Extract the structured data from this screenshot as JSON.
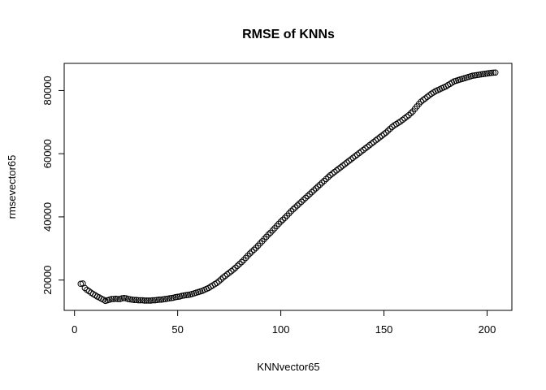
{
  "chart_data": {
    "type": "scatter",
    "title": "RMSE of KNNs",
    "xlabel": "KNNvector65",
    "ylabel": "rmsevector65",
    "color": "#000000",
    "grid": false,
    "xlim": [
      -5,
      212
    ],
    "ylim": [
      10400,
      88600
    ],
    "xticks": [
      0,
      50,
      100,
      150,
      200
    ],
    "yticks": [
      20000,
      40000,
      60000,
      80000
    ],
    "x": [
      3,
      4,
      5,
      6,
      7,
      8,
      9,
      10,
      11,
      12,
      13,
      14,
      15,
      16,
      17,
      18,
      19,
      20,
      21,
      22,
      23,
      24,
      25,
      26,
      27,
      28,
      29,
      30,
      31,
      32,
      33,
      34,
      35,
      36,
      37,
      38,
      39,
      40,
      41,
      42,
      43,
      44,
      45,
      46,
      47,
      48,
      49,
      50,
      51,
      52,
      53,
      54,
      55,
      56,
      57,
      58,
      59,
      60,
      61,
      62,
      63,
      64,
      65,
      66,
      67,
      68,
      69,
      70,
      71,
      72,
      73,
      74,
      75,
      76,
      77,
      78,
      79,
      80,
      81,
      82,
      83,
      84,
      85,
      86,
      87,
      88,
      89,
      90,
      91,
      92,
      93,
      94,
      95,
      96,
      97,
      98,
      99,
      100,
      101,
      102,
      103,
      104,
      105,
      106,
      107,
      108,
      109,
      110,
      111,
      112,
      113,
      114,
      115,
      116,
      117,
      118,
      119,
      120,
      121,
      122,
      123,
      124,
      125,
      126,
      127,
      128,
      129,
      130,
      131,
      132,
      133,
      134,
      135,
      136,
      137,
      138,
      139,
      140,
      141,
      142,
      143,
      144,
      145,
      146,
      147,
      148,
      149,
      150,
      151,
      152,
      153,
      154,
      155,
      156,
      157,
      158,
      159,
      160,
      161,
      162,
      163,
      164,
      165,
      166,
      167,
      168,
      169,
      170,
      171,
      172,
      173,
      174,
      175,
      176,
      177,
      178,
      179,
      180,
      181,
      182,
      183,
      184,
      185,
      186,
      187,
      188,
      189,
      190,
      191,
      192,
      193,
      194,
      195,
      196,
      197,
      198,
      199,
      200,
      201,
      202,
      203,
      204
    ],
    "values": [
      18800,
      18900,
      17500,
      16900,
      16500,
      16000,
      15600,
      15200,
      14800,
      14500,
      14100,
      13800,
      13400,
      13600,
      13800,
      14000,
      14000,
      14100,
      14000,
      14000,
      14200,
      14300,
      14200,
      14000,
      13900,
      13800,
      13700,
      13700,
      13600,
      13600,
      13600,
      13500,
      13500,
      13500,
      13500,
      13600,
      13600,
      13700,
      13800,
      13800,
      13900,
      14000,
      14100,
      14200,
      14300,
      14400,
      14600,
      14700,
      14800,
      15000,
      15100,
      15200,
      15300,
      15400,
      15600,
      15800,
      16000,
      16200,
      16400,
      16600,
      16900,
      17200,
      17500,
      17900,
      18300,
      18700,
      19100,
      19600,
      20200,
      20800,
      21300,
      21800,
      22300,
      22800,
      23300,
      23900,
      24500,
      25100,
      25700,
      26300,
      27000,
      27700,
      28400,
      29000,
      29600,
      30200,
      30900,
      31600,
      32300,
      33000,
      33700,
      34400,
      35000,
      35700,
      36400,
      37100,
      37800,
      38500,
      39100,
      39700,
      40400,
      41100,
      41800,
      42400,
      43000,
      43600,
      44200,
      44800,
      45400,
      46000,
      46600,
      47200,
      47800,
      48400,
      49000,
      49600,
      50200,
      50800,
      51400,
      52000,
      52600,
      53200,
      53700,
      54200,
      54700,
      55200,
      55700,
      56200,
      56700,
      57200,
      57700,
      58200,
      58700,
      59200,
      59700,
      60200,
      60700,
      61200,
      61700,
      62200,
      62700,
      63200,
      63700,
      64200,
      64700,
      65200,
      65700,
      66200,
      66700,
      67300,
      67900,
      68500,
      69000,
      69400,
      69800,
      70200,
      70700,
      71200,
      71700,
      72200,
      72800,
      73400,
      74200,
      75000,
      75800,
      76500,
      77000,
      77500,
      78000,
      78500,
      79000,
      79400,
      79800,
      80100,
      80400,
      80700,
      81000,
      81300,
      81700,
      82100,
      82500,
      82900,
      83100,
      83300,
      83500,
      83700,
      83900,
      84100,
      84300,
      84500,
      84700,
      84800,
      84900,
      85000,
      85100,
      85200,
      85300,
      85400,
      85500,
      85600,
      85650,
      85700
    ]
  }
}
